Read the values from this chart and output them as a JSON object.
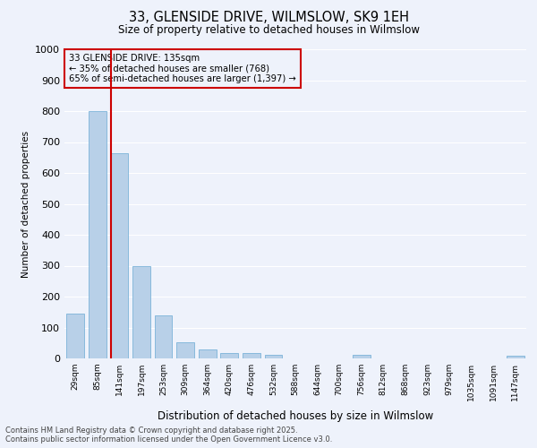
{
  "title_line1": "33, GLENSIDE DRIVE, WILMSLOW, SK9 1EH",
  "title_line2": "Size of property relative to detached houses in Wilmslow",
  "xlabel": "Distribution of detached houses by size in Wilmslow",
  "ylabel": "Number of detached properties",
  "categories": [
    "29sqm",
    "85sqm",
    "141sqm",
    "197sqm",
    "253sqm",
    "309sqm",
    "364sqm",
    "420sqm",
    "476sqm",
    "532sqm",
    "588sqm",
    "644sqm",
    "700sqm",
    "756sqm",
    "812sqm",
    "868sqm",
    "923sqm",
    "979sqm",
    "1035sqm",
    "1091sqm",
    "1147sqm"
  ],
  "values": [
    145,
    800,
    665,
    300,
    138,
    52,
    28,
    18,
    18,
    12,
    0,
    0,
    0,
    12,
    0,
    0,
    0,
    0,
    0,
    0,
    8
  ],
  "bar_color": "#b8d0e8",
  "bar_edge_color": "#6aaad4",
  "vline_color": "#cc0000",
  "vline_x_index": 1.6,
  "annotation_text": "33 GLENSIDE DRIVE: 135sqm\n← 35% of detached houses are smaller (768)\n65% of semi-detached houses are larger (1,397) →",
  "annotation_box_color": "#cc0000",
  "ylim": [
    0,
    1000
  ],
  "yticks": [
    0,
    100,
    200,
    300,
    400,
    500,
    600,
    700,
    800,
    900,
    1000
  ],
  "background_color": "#eef2fb",
  "grid_color": "#ffffff",
  "footer_line1": "Contains HM Land Registry data © Crown copyright and database right 2025.",
  "footer_line2": "Contains public sector information licensed under the Open Government Licence v3.0."
}
